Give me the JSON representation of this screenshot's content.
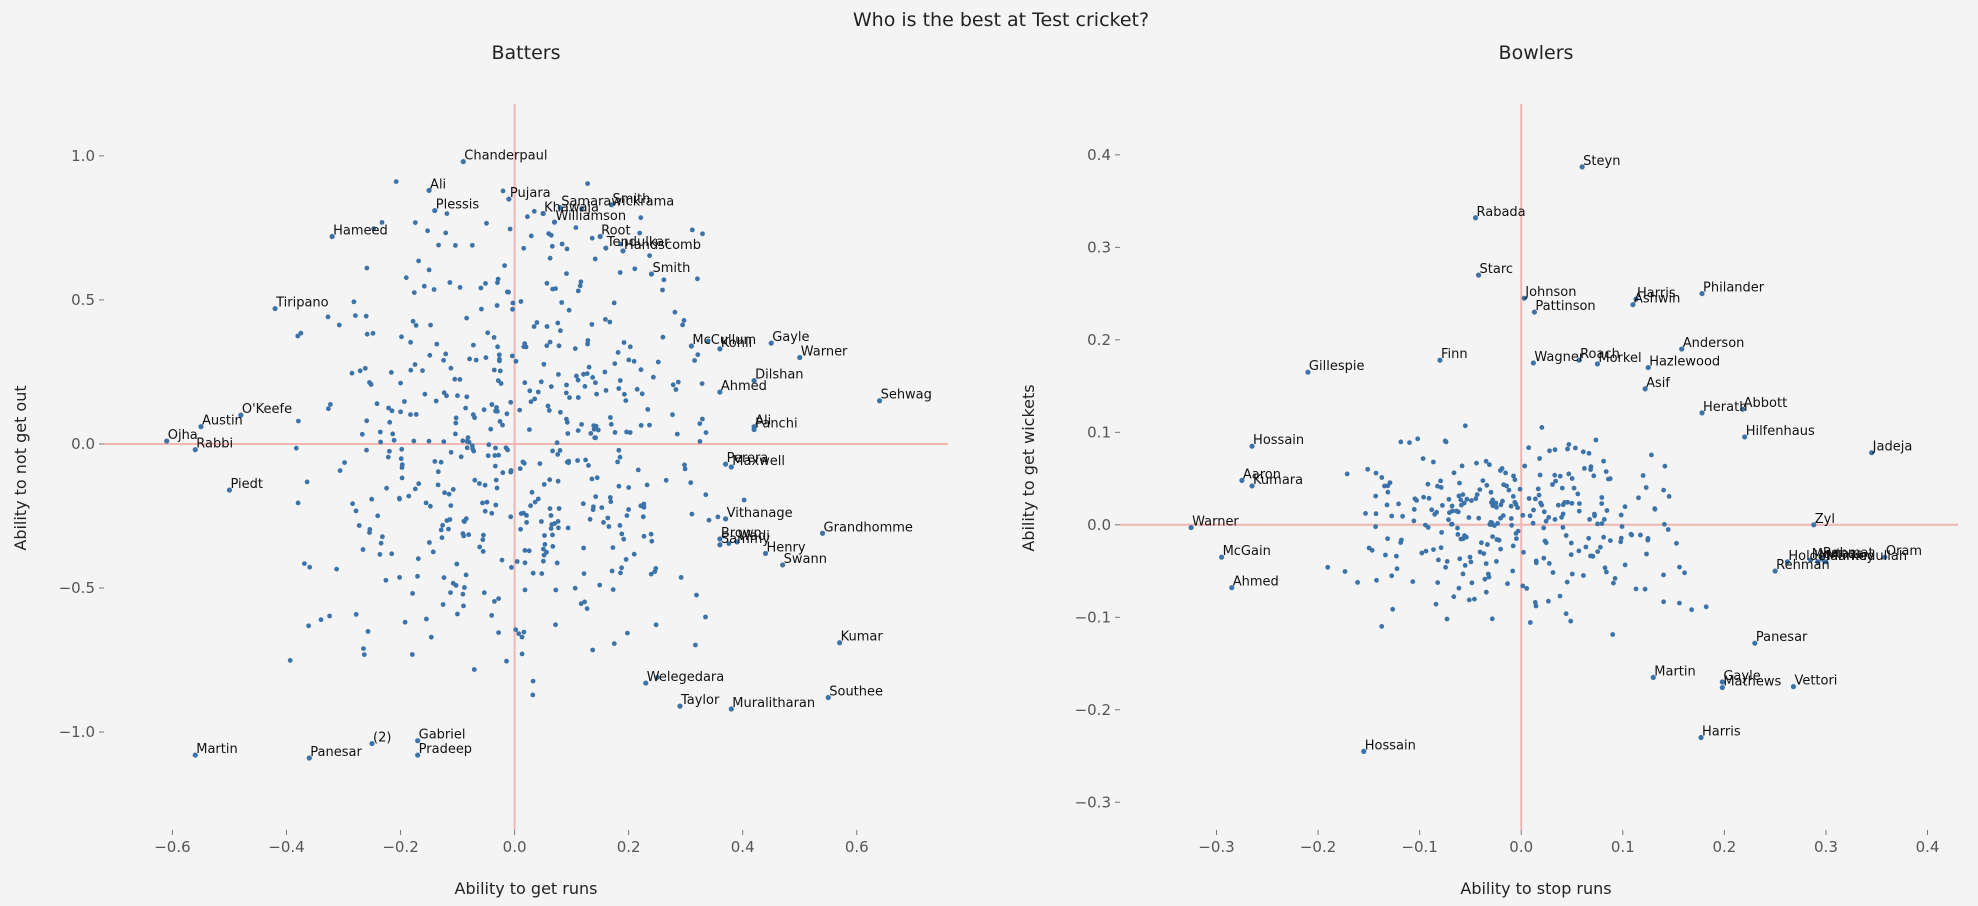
{
  "title": "Who is the best at Test cricket?",
  "colors": {
    "points": "#3c73a8",
    "zero_lines": "#f2b5b2",
    "background": "#f4f4f4"
  },
  "chart_data": [
    {
      "type": "scatter",
      "title": "Batters",
      "xlabel": "Ability to get runs",
      "ylabel": "Ability to not get out",
      "xlim": [
        -0.72,
        0.76
      ],
      "ylim": [
        -1.34,
        1.18
      ],
      "xticks": [
        -0.6,
        -0.4,
        -0.2,
        0.0,
        0.2,
        0.4,
        0.6
      ],
      "xtick_labels": [
        "−0.6",
        "−0.4",
        "−0.2",
        "0.0",
        "0.2",
        "0.4",
        "0.6"
      ],
      "yticks": [
        1.0,
        0.5,
        0.0,
        -0.5,
        -1.0
      ],
      "ytick_labels": [
        "1.0",
        "0.5",
        "0.0",
        "−0.5",
        "−1.0"
      ],
      "grid": false,
      "reference_lines": {
        "x": 0,
        "y": 0
      },
      "labeled_points": [
        {
          "name": "Chanderpaul",
          "x": -0.09,
          "y": 0.98
        },
        {
          "name": "Ali",
          "x": -0.15,
          "y": 0.88
        },
        {
          "name": "Pujara",
          "x": -0.01,
          "y": 0.85
        },
        {
          "name": "Plessis",
          "x": -0.14,
          "y": 0.81
        },
        {
          "name": "Samarawickrama",
          "x": 0.08,
          "y": 0.82
        },
        {
          "name": "Khawaja",
          "x": 0.05,
          "y": 0.8
        },
        {
          "name": "Smith",
          "x": 0.17,
          "y": 0.83
        },
        {
          "name": "Williamson",
          "x": 0.07,
          "y": 0.77
        },
        {
          "name": "Hameed",
          "x": -0.32,
          "y": 0.72
        },
        {
          "name": "Root",
          "x": 0.15,
          "y": 0.72
        },
        {
          "name": "Tendulkar",
          "x": 0.16,
          "y": 0.68
        },
        {
          "name": "Handscomb",
          "x": 0.19,
          "y": 0.67
        },
        {
          "name": "Smith",
          "x": 0.24,
          "y": 0.59
        },
        {
          "name": "Tiripano",
          "x": -0.42,
          "y": 0.47
        },
        {
          "name": "McCullum",
          "x": 0.31,
          "y": 0.34
        },
        {
          "name": "Kohli",
          "x": 0.36,
          "y": 0.33
        },
        {
          "name": "Gayle",
          "x": 0.45,
          "y": 0.35
        },
        {
          "name": "Warner",
          "x": 0.5,
          "y": 0.3
        },
        {
          "name": "Dilshan",
          "x": 0.42,
          "y": 0.22
        },
        {
          "name": "Ahmed",
          "x": 0.36,
          "y": 0.18
        },
        {
          "name": "Sehwag",
          "x": 0.64,
          "y": 0.15
        },
        {
          "name": "O'Keefe",
          "x": -0.48,
          "y": 0.1
        },
        {
          "name": "Austin",
          "x": -0.55,
          "y": 0.06
        },
        {
          "name": "Ali",
          "x": 0.42,
          "y": 0.06
        },
        {
          "name": "Panchi",
          "x": 0.42,
          "y": 0.05
        },
        {
          "name": "Ojha",
          "x": -0.61,
          "y": 0.01
        },
        {
          "name": "Rabbi",
          "x": -0.56,
          "y": -0.02
        },
        {
          "name": "Perera",
          "x": 0.37,
          "y": -0.07
        },
        {
          "name": "Maxwell",
          "x": 0.38,
          "y": -0.08
        },
        {
          "name": "Piedt",
          "x": -0.5,
          "y": -0.16
        },
        {
          "name": "Vithanage",
          "x": 0.37,
          "y": -0.26
        },
        {
          "name": "Grandhomme",
          "x": 0.54,
          "y": -0.31
        },
        {
          "name": "Brown",
          "x": 0.36,
          "y": -0.33
        },
        {
          "name": "Wadi",
          "x": 0.39,
          "y": -0.34
        },
        {
          "name": "Sammy",
          "x": 0.36,
          "y": -0.35
        },
        {
          "name": "Henry",
          "x": 0.44,
          "y": -0.38
        },
        {
          "name": "Swann",
          "x": 0.47,
          "y": -0.42
        },
        {
          "name": "Kumar",
          "x": 0.57,
          "y": -0.69
        },
        {
          "name": "Welegedara",
          "x": 0.23,
          "y": -0.83
        },
        {
          "name": "Southee",
          "x": 0.55,
          "y": -0.88
        },
        {
          "name": "Taylor",
          "x": 0.29,
          "y": -0.91
        },
        {
          "name": "Muralitharan",
          "x": 0.38,
          "y": -0.92
        },
        {
          "name": "(2)",
          "x": -0.25,
          "y": -1.04
        },
        {
          "name": "Gabriel",
          "x": -0.17,
          "y": -1.03
        },
        {
          "name": "Martin",
          "x": -0.56,
          "y": -1.08
        },
        {
          "name": "Panesar",
          "x": -0.36,
          "y": -1.09
        },
        {
          "name": "Pradeep",
          "x": -0.17,
          "y": -1.08
        }
      ]
    },
    {
      "type": "scatter",
      "title": "Bowlers",
      "xlabel": "Ability to stop runs",
      "ylabel": "Ability to get wickets",
      "xlim": [
        -0.395,
        0.43
      ],
      "ylim": [
        -0.33,
        0.455
      ],
      "xticks": [
        -0.3,
        -0.2,
        -0.1,
        0.0,
        0.1,
        0.2,
        0.3,
        0.4
      ],
      "xtick_labels": [
        "−0.3",
        "−0.2",
        "−0.1",
        "0.0",
        "0.1",
        "0.2",
        "0.3",
        "0.4"
      ],
      "yticks": [
        0.4,
        0.3,
        0.2,
        0.1,
        0.0,
        -0.1,
        -0.2,
        -0.3
      ],
      "ytick_labels": [
        "0.4",
        "0.3",
        "0.2",
        "0.1",
        "0.0",
        "−0.1",
        "−0.2",
        "−0.3"
      ],
      "grid": false,
      "reference_lines": {
        "x": 0,
        "y": 0
      },
      "labeled_points": [
        {
          "name": "Steyn",
          "x": 0.06,
          "y": 0.387
        },
        {
          "name": "Rabada",
          "x": -0.045,
          "y": 0.332
        },
        {
          "name": "Starc",
          "x": -0.042,
          "y": 0.27
        },
        {
          "name": "Johnson",
          "x": 0.003,
          "y": 0.245
        },
        {
          "name": "Harris",
          "x": 0.113,
          "y": 0.244
        },
        {
          "name": "Ashwin",
          "x": 0.11,
          "y": 0.238
        },
        {
          "name": "Philander",
          "x": 0.178,
          "y": 0.25
        },
        {
          "name": "Pattinson",
          "x": 0.013,
          "y": 0.23
        },
        {
          "name": "Anderson",
          "x": 0.158,
          "y": 0.19
        },
        {
          "name": "Finn",
          "x": -0.08,
          "y": 0.178
        },
        {
          "name": "Wagner",
          "x": 0.012,
          "y": 0.175
        },
        {
          "name": "Roach",
          "x": 0.057,
          "y": 0.178
        },
        {
          "name": "Morkel",
          "x": 0.075,
          "y": 0.174
        },
        {
          "name": "Hazlewood",
          "x": 0.125,
          "y": 0.17
        },
        {
          "name": "Gillespie",
          "x": -0.21,
          "y": 0.165
        },
        {
          "name": "Asif",
          "x": 0.122,
          "y": 0.147
        },
        {
          "name": "Herath",
          "x": 0.178,
          "y": 0.121
        },
        {
          "name": "Abbott",
          "x": 0.218,
          "y": 0.125
        },
        {
          "name": "Hilfenhaus",
          "x": 0.22,
          "y": 0.095
        },
        {
          "name": "Hossain",
          "x": -0.265,
          "y": 0.085
        },
        {
          "name": "Jadeja",
          "x": 0.345,
          "y": 0.078
        },
        {
          "name": "Aaron",
          "x": -0.275,
          "y": 0.048
        },
        {
          "name": "Kumara",
          "x": -0.265,
          "y": 0.042
        },
        {
          "name": "Warner",
          "x": -0.325,
          "y": -0.003
        },
        {
          "name": "Zyl",
          "x": 0.288,
          "y": 0.0
        },
        {
          "name": "McGain",
          "x": -0.295,
          "y": -0.035
        },
        {
          "name": "Oram",
          "x": 0.358,
          "y": -0.035
        },
        {
          "name": "Holder",
          "x": 0.262,
          "y": -0.04
        },
        {
          "name": "Mortaza",
          "x": 0.285,
          "y": -0.038
        },
        {
          "name": "Mahmudullah",
          "x": 0.292,
          "y": -0.04
        },
        {
          "name": "Rahmat",
          "x": 0.296,
          "y": -0.037
        },
        {
          "name": "Markey",
          "x": 0.3,
          "y": -0.04
        },
        {
          "name": "Rehman",
          "x": 0.25,
          "y": -0.05
        },
        {
          "name": "Ahmed",
          "x": -0.285,
          "y": -0.068
        },
        {
          "name": "Panesar",
          "x": 0.23,
          "y": -0.128
        },
        {
          "name": "Martin",
          "x": 0.13,
          "y": -0.165
        },
        {
          "name": "Gayle",
          "x": 0.198,
          "y": -0.17
        },
        {
          "name": "Mathews",
          "x": 0.198,
          "y": -0.176
        },
        {
          "name": "Vettori",
          "x": 0.268,
          "y": -0.175
        },
        {
          "name": "Harris",
          "x": 0.177,
          "y": -0.23
        },
        {
          "name": "Hossain",
          "x": -0.155,
          "y": -0.245
        }
      ]
    }
  ]
}
